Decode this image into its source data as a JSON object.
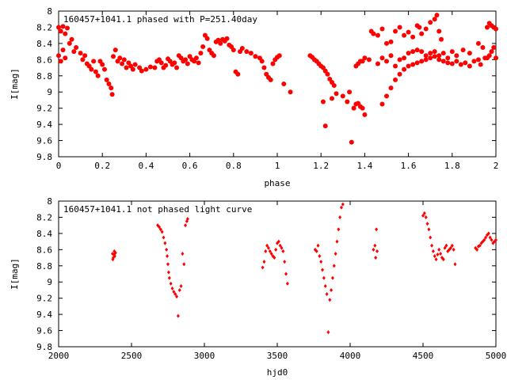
{
  "chart_data": [
    {
      "type": "scatter",
      "title": "160457+1041.1 phased with P=251.40day",
      "xlabel": "phase",
      "ylabel": "I[mag]",
      "xlim": [
        0,
        2
      ],
      "ylim": [
        9.8,
        8.0
      ],
      "y_inverted": true,
      "grid": false,
      "marker": "filled-circle",
      "color": "#ff0000",
      "x_ticks": [
        0,
        0.2,
        0.4,
        0.6,
        0.8,
        1,
        1.2,
        1.4,
        1.6,
        1.8,
        2
      ],
      "x_tick_labels": [
        "0",
        "0.2",
        "0.4",
        "0.6",
        "0.8",
        "1",
        "1.2",
        "1.4",
        "1.6",
        "1.8",
        "2"
      ],
      "y_ticks": [
        8,
        8.2,
        8.4,
        8.6,
        8.8,
        9,
        9.2,
        9.4,
        9.6,
        9.8
      ],
      "y_tick_labels": [
        "8",
        "8.2",
        "8.4",
        "8.6",
        "8.8",
        "9",
        "9.2",
        "9.4",
        "9.6",
        "9.8"
      ],
      "points": [
        [
          0.0,
          8.2
        ],
        [
          0.01,
          8.25
        ],
        [
          0.02,
          8.19
        ],
        [
          0.03,
          8.28
        ],
        [
          0.04,
          8.21
        ],
        [
          0.0,
          8.55
        ],
        [
          0.01,
          8.62
        ],
        [
          0.02,
          8.48
        ],
        [
          0.03,
          8.58
        ],
        [
          0.05,
          8.4
        ],
        [
          0.06,
          8.35
        ],
        [
          0.07,
          8.5
        ],
        [
          0.08,
          8.45
        ],
        [
          0.1,
          8.52
        ],
        [
          0.11,
          8.6
        ],
        [
          0.12,
          8.55
        ],
        [
          0.13,
          8.65
        ],
        [
          0.14,
          8.68
        ],
        [
          0.15,
          8.72
        ],
        [
          0.16,
          8.62
        ],
        [
          0.17,
          8.75
        ],
        [
          0.18,
          8.8
        ],
        [
          0.19,
          8.62
        ],
        [
          0.2,
          8.66
        ],
        [
          0.21,
          8.72
        ],
        [
          0.22,
          8.85
        ],
        [
          0.23,
          8.9
        ],
        [
          0.24,
          8.95
        ],
        [
          0.245,
          9.03
        ],
        [
          0.25,
          8.56
        ],
        [
          0.26,
          8.48
        ],
        [
          0.27,
          8.62
        ],
        [
          0.28,
          8.58
        ],
        [
          0.29,
          8.65
        ],
        [
          0.3,
          8.6
        ],
        [
          0.31,
          8.7
        ],
        [
          0.32,
          8.64
        ],
        [
          0.33,
          8.68
        ],
        [
          0.34,
          8.72
        ],
        [
          0.35,
          8.66
        ],
        [
          0.37,
          8.7
        ],
        [
          0.38,
          8.74
        ],
        [
          0.4,
          8.72
        ],
        [
          0.42,
          8.69
        ],
        [
          0.44,
          8.7
        ],
        [
          0.45,
          8.62
        ],
        [
          0.46,
          8.6
        ],
        [
          0.47,
          8.64
        ],
        [
          0.48,
          8.7
        ],
        [
          0.49,
          8.67
        ],
        [
          0.5,
          8.59
        ],
        [
          0.51,
          8.62
        ],
        [
          0.52,
          8.66
        ],
        [
          0.53,
          8.64
        ],
        [
          0.54,
          8.7
        ],
        [
          0.55,
          8.55
        ],
        [
          0.56,
          8.58
        ],
        [
          0.57,
          8.62
        ],
        [
          0.58,
          8.6
        ],
        [
          0.59,
          8.65
        ],
        [
          0.6,
          8.56
        ],
        [
          0.61,
          8.6
        ],
        [
          0.62,
          8.62
        ],
        [
          0.63,
          8.58
        ],
        [
          0.64,
          8.64
        ],
        [
          0.65,
          8.52
        ],
        [
          0.66,
          8.44
        ],
        [
          0.67,
          8.3
        ],
        [
          0.68,
          8.34
        ],
        [
          0.69,
          8.48
        ],
        [
          0.7,
          8.52
        ],
        [
          0.71,
          8.55
        ],
        [
          0.72,
          8.38
        ],
        [
          0.73,
          8.36
        ],
        [
          0.74,
          8.4
        ],
        [
          0.75,
          8.35
        ],
        [
          0.76,
          8.37
        ],
        [
          0.77,
          8.34
        ],
        [
          0.78,
          8.42
        ],
        [
          0.79,
          8.44
        ],
        [
          0.8,
          8.48
        ],
        [
          0.81,
          8.75
        ],
        [
          0.82,
          8.78
        ],
        [
          0.83,
          8.5
        ],
        [
          0.84,
          8.46
        ],
        [
          0.86,
          8.5
        ],
        [
          0.88,
          8.52
        ],
        [
          0.9,
          8.56
        ],
        [
          0.92,
          8.58
        ],
        [
          0.93,
          8.62
        ],
        [
          0.94,
          8.7
        ],
        [
          0.95,
          8.78
        ],
        [
          0.96,
          8.82
        ],
        [
          0.97,
          8.85
        ],
        [
          0.98,
          8.65
        ],
        [
          0.99,
          8.6
        ],
        [
          1.0,
          8.57
        ],
        [
          1.01,
          8.55
        ],
        [
          1.03,
          8.9
        ],
        [
          1.06,
          9.0
        ],
        [
          1.15,
          8.55
        ],
        [
          1.16,
          8.57
        ],
        [
          1.17,
          8.6
        ],
        [
          1.18,
          8.62
        ],
        [
          1.19,
          8.65
        ],
        [
          1.2,
          8.68
        ],
        [
          1.21,
          8.7
        ],
        [
          1.22,
          8.74
        ],
        [
          1.23,
          8.78
        ],
        [
          1.24,
          8.84
        ],
        [
          1.25,
          8.88
        ],
        [
          1.26,
          8.92
        ],
        [
          1.21,
          9.12
        ],
        [
          1.22,
          9.42
        ],
        [
          1.25,
          9.08
        ],
        [
          1.27,
          9.02
        ],
        [
          1.3,
          9.05
        ],
        [
          1.32,
          9.12
        ],
        [
          1.33,
          9.0
        ],
        [
          1.34,
          9.62
        ],
        [
          1.35,
          9.2
        ],
        [
          1.36,
          9.15
        ],
        [
          1.37,
          9.14
        ],
        [
          1.38,
          9.18
        ],
        [
          1.39,
          9.2
        ],
        [
          1.4,
          9.28
        ],
        [
          1.36,
          8.68
        ],
        [
          1.37,
          8.65
        ],
        [
          1.38,
          8.62
        ],
        [
          1.39,
          8.62
        ],
        [
          1.4,
          8.58
        ],
        [
          1.42,
          8.6
        ],
        [
          1.43,
          8.25
        ],
        [
          1.44,
          8.28
        ],
        [
          1.46,
          8.3
        ],
        [
          1.48,
          8.22
        ],
        [
          1.5,
          8.4
        ],
        [
          1.52,
          8.38
        ],
        [
          1.54,
          8.25
        ],
        [
          1.56,
          8.2
        ],
        [
          1.58,
          8.3
        ],
        [
          1.6,
          8.26
        ],
        [
          1.62,
          8.32
        ],
        [
          1.64,
          8.18
        ],
        [
          1.65,
          8.2
        ],
        [
          1.66,
          8.28
        ],
        [
          1.68,
          8.22
        ],
        [
          1.7,
          8.14
        ],
        [
          1.72,
          8.1
        ],
        [
          1.73,
          8.05
        ],
        [
          1.74,
          8.25
        ],
        [
          1.75,
          8.35
        ],
        [
          1.46,
          8.65
        ],
        [
          1.48,
          8.58
        ],
        [
          1.5,
          8.62
        ],
        [
          1.52,
          8.55
        ],
        [
          1.54,
          8.68
        ],
        [
          1.56,
          8.6
        ],
        [
          1.58,
          8.58
        ],
        [
          1.6,
          8.52
        ],
        [
          1.62,
          8.5
        ],
        [
          1.64,
          8.48
        ],
        [
          1.66,
          8.5
        ],
        [
          1.68,
          8.55
        ],
        [
          1.7,
          8.52
        ],
        [
          1.72,
          8.5
        ],
        [
          1.74,
          8.55
        ],
        [
          1.76,
          8.52
        ],
        [
          1.78,
          8.58
        ],
        [
          1.48,
          9.15
        ],
        [
          1.5,
          9.05
        ],
        [
          1.52,
          8.95
        ],
        [
          1.54,
          8.85
        ],
        [
          1.56,
          8.78
        ],
        [
          1.58,
          8.72
        ],
        [
          1.6,
          8.68
        ],
        [
          1.62,
          8.66
        ],
        [
          1.64,
          8.64
        ],
        [
          1.66,
          8.62
        ],
        [
          1.68,
          8.6
        ],
        [
          1.7,
          8.58
        ],
        [
          1.72,
          8.56
        ],
        [
          1.74,
          8.6
        ],
        [
          1.76,
          8.62
        ],
        [
          1.78,
          8.64
        ],
        [
          1.8,
          8.65
        ],
        [
          1.82,
          8.62
        ],
        [
          1.84,
          8.66
        ],
        [
          1.86,
          8.64
        ],
        [
          1.88,
          8.68
        ],
        [
          1.9,
          8.62
        ],
        [
          1.92,
          8.6
        ],
        [
          1.94,
          8.45
        ],
        [
          1.96,
          8.2
        ],
        [
          1.97,
          8.15
        ],
        [
          1.98,
          8.18
        ],
        [
          1.99,
          8.2
        ],
        [
          1.8,
          8.5
        ],
        [
          1.82,
          8.55
        ],
        [
          1.85,
          8.48
        ],
        [
          1.88,
          8.52
        ],
        [
          1.92,
          8.4
        ],
        [
          1.95,
          8.58
        ],
        [
          1.97,
          8.55
        ],
        [
          2.0,
          8.58
        ],
        [
          2.0,
          8.22
        ],
        [
          1.99,
          8.45
        ],
        [
          1.98,
          8.5
        ],
        [
          1.96,
          8.58
        ],
        [
          1.93,
          8.66
        ]
      ]
    },
    {
      "type": "scatter",
      "title": "160457+1041.1 not phased light curve",
      "xlabel": "hjd0",
      "ylabel": "I[mag]",
      "xlim": [
        2000,
        5000
      ],
      "ylim": [
        9.8,
        8.0
      ],
      "y_inverted": true,
      "grid": false,
      "marker": "small-diamond",
      "color": "#ff0000",
      "x_ticks": [
        2000,
        2500,
        3000,
        3500,
        4000,
        4500,
        5000
      ],
      "x_tick_labels": [
        "2000",
        "2500",
        "3000",
        "3500",
        "4000",
        "4500",
        "5000"
      ],
      "y_ticks": [
        8,
        8.2,
        8.4,
        8.6,
        8.8,
        9,
        9.2,
        9.4,
        9.6,
        9.8
      ],
      "y_tick_labels": [
        "8",
        "8.2",
        "8.4",
        "8.6",
        "8.8",
        "9",
        "9.2",
        "9.4",
        "9.6",
        "9.8"
      ],
      "points": [
        [
          2370,
          8.65
        ],
        [
          2375,
          8.7
        ],
        [
          2380,
          8.66
        ],
        [
          2385,
          8.68
        ],
        [
          2390,
          8.64
        ],
        [
          2372,
          8.72
        ],
        [
          2382,
          8.62
        ],
        [
          2680,
          8.3
        ],
        [
          2690,
          8.32
        ],
        [
          2700,
          8.35
        ],
        [
          2710,
          8.38
        ],
        [
          2720,
          8.45
        ],
        [
          2730,
          8.52
        ],
        [
          2740,
          8.6
        ],
        [
          2745,
          8.68
        ],
        [
          2750,
          8.78
        ],
        [
          2755,
          8.88
        ],
        [
          2760,
          8.95
        ],
        [
          2770,
          9.02
        ],
        [
          2780,
          9.08
        ],
        [
          2790,
          9.12
        ],
        [
          2800,
          9.15
        ],
        [
          2810,
          9.18
        ],
        [
          2820,
          9.42
        ],
        [
          2830,
          9.1
        ],
        [
          2840,
          9.05
        ],
        [
          2850,
          8.65
        ],
        [
          2860,
          8.78
        ],
        [
          2870,
          8.3
        ],
        [
          2880,
          8.25
        ],
        [
          2885,
          8.22
        ],
        [
          3400,
          8.82
        ],
        [
          3410,
          8.75
        ],
        [
          3420,
          8.62
        ],
        [
          3430,
          8.55
        ],
        [
          3440,
          8.58
        ],
        [
          3450,
          8.62
        ],
        [
          3460,
          8.65
        ],
        [
          3470,
          8.68
        ],
        [
          3480,
          8.7
        ],
        [
          3490,
          8.6
        ],
        [
          3500,
          8.52
        ],
        [
          3510,
          8.5
        ],
        [
          3520,
          8.55
        ],
        [
          3530,
          8.58
        ],
        [
          3540,
          8.62
        ],
        [
          3550,
          8.75
        ],
        [
          3560,
          8.9
        ],
        [
          3570,
          9.02
        ],
        [
          3760,
          8.6
        ],
        [
          3770,
          8.62
        ],
        [
          3780,
          8.55
        ],
        [
          3790,
          8.68
        ],
        [
          3800,
          8.75
        ],
        [
          3810,
          8.85
        ],
        [
          3820,
          8.95
        ],
        [
          3830,
          9.05
        ],
        [
          3840,
          9.15
        ],
        [
          3850,
          9.62
        ],
        [
          3860,
          9.22
        ],
        [
          3870,
          9.1
        ],
        [
          3880,
          8.95
        ],
        [
          3890,
          8.8
        ],
        [
          3900,
          8.65
        ],
        [
          3910,
          8.5
        ],
        [
          3920,
          8.35
        ],
        [
          3930,
          8.2
        ],
        [
          3940,
          8.08
        ],
        [
          3950,
          8.04
        ],
        [
          4160,
          8.6
        ],
        [
          4170,
          8.55
        ],
        [
          4175,
          8.7
        ],
        [
          4180,
          8.35
        ],
        [
          4185,
          8.62
        ],
        [
          4500,
          8.18
        ],
        [
          4510,
          8.15
        ],
        [
          4520,
          8.2
        ],
        [
          4530,
          8.28
        ],
        [
          4540,
          8.35
        ],
        [
          4550,
          8.45
        ],
        [
          4560,
          8.55
        ],
        [
          4570,
          8.62
        ],
        [
          4580,
          8.68
        ],
        [
          4590,
          8.72
        ],
        [
          4600,
          8.66
        ],
        [
          4610,
          8.6
        ],
        [
          4620,
          8.65
        ],
        [
          4630,
          8.7
        ],
        [
          4640,
          8.72
        ],
        [
          4650,
          8.58
        ],
        [
          4660,
          8.55
        ],
        [
          4670,
          8.62
        ],
        [
          4680,
          8.6
        ],
        [
          4690,
          8.58
        ],
        [
          4700,
          8.55
        ],
        [
          4710,
          8.6
        ],
        [
          4720,
          8.78
        ],
        [
          4860,
          8.58
        ],
        [
          4870,
          8.6
        ],
        [
          4880,
          8.56
        ],
        [
          4890,
          8.55
        ],
        [
          4900,
          8.52
        ],
        [
          4910,
          8.5
        ],
        [
          4920,
          8.48
        ],
        [
          4930,
          8.45
        ],
        [
          4940,
          8.42
        ],
        [
          4950,
          8.4
        ],
        [
          4960,
          8.45
        ],
        [
          4970,
          8.48
        ],
        [
          4980,
          8.52
        ],
        [
          4990,
          8.5
        ],
        [
          5000,
          8.48
        ]
      ]
    }
  ]
}
